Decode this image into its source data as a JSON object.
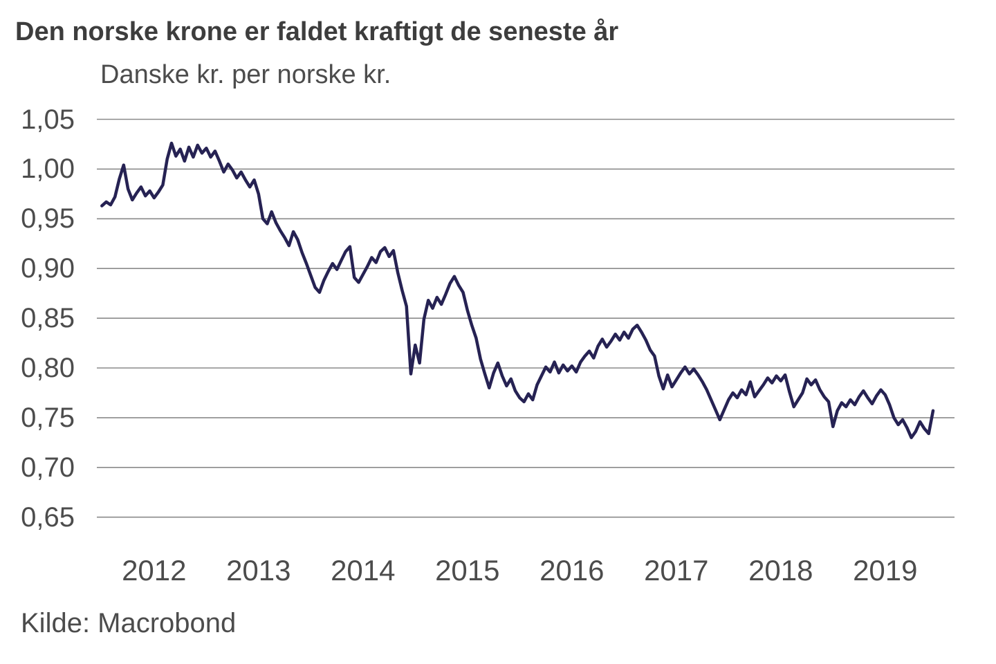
{
  "header": {
    "title": "Den norske krone er faldet kraftigt de seneste år",
    "subtitle": "Danske kr. per norske kr."
  },
  "source_label": "Kilde: Macrobond",
  "colors": {
    "line": "#262253",
    "grid": "#8a8a8a",
    "title_text": "#3d3d3d",
    "body_text": "#4c4c4c",
    "background": "#ffffff"
  },
  "chart_data": {
    "type": "line",
    "title": "Den norske krone er faldet kraftigt de seneste år",
    "ylabel": "Danske kr. per norske kr.",
    "xlabel": "",
    "source": "Kilde: Macrobond",
    "grid": true,
    "legend_position": "none",
    "ylim": [
      0.65,
      1.05
    ],
    "x_range_years": [
      2012.0,
      2019.96
    ],
    "y_ticks": [
      {
        "value": 1.05,
        "label": "1,05"
      },
      {
        "value": 1.0,
        "label": "1,00"
      },
      {
        "value": 0.95,
        "label": "0,95"
      },
      {
        "value": 0.9,
        "label": "0,90"
      },
      {
        "value": 0.85,
        "label": "0,85"
      },
      {
        "value": 0.8,
        "label": "0,80"
      },
      {
        "value": 0.75,
        "label": "0,75"
      },
      {
        "value": 0.7,
        "label": "0,70"
      },
      {
        "value": 0.65,
        "label": "0,65"
      }
    ],
    "x_ticks": [
      {
        "year": 2012,
        "label": "2012"
      },
      {
        "year": 2013,
        "label": "2013"
      },
      {
        "year": 2014,
        "label": "2014"
      },
      {
        "year": 2015,
        "label": "2015"
      },
      {
        "year": 2016,
        "label": "2016"
      },
      {
        "year": 2017,
        "label": "2017"
      },
      {
        "year": 2018,
        "label": "2018"
      },
      {
        "year": 2019,
        "label": "2019"
      }
    ],
    "series": [
      {
        "name": "Danske kr. per norske kr.",
        "x_start": 2012.0,
        "x_step_years": 0.0416667,
        "values": [
          0.963,
          0.967,
          0.964,
          0.972,
          0.99,
          1.004,
          0.98,
          0.969,
          0.976,
          0.982,
          0.973,
          0.978,
          0.971,
          0.977,
          0.984,
          1.01,
          1.026,
          1.013,
          1.02,
          1.008,
          1.022,
          1.012,
          1.024,
          1.016,
          1.021,
          1.012,
          1.018,
          1.008,
          0.997,
          1.005,
          0.999,
          0.991,
          0.997,
          0.989,
          0.982,
          0.989,
          0.975,
          0.95,
          0.945,
          0.957,
          0.946,
          0.938,
          0.931,
          0.923,
          0.937,
          0.929,
          0.916,
          0.905,
          0.893,
          0.881,
          0.876,
          0.888,
          0.897,
          0.905,
          0.899,
          0.908,
          0.917,
          0.922,
          0.891,
          0.886,
          0.894,
          0.902,
          0.911,
          0.906,
          0.917,
          0.921,
          0.912,
          0.918,
          0.896,
          0.878,
          0.862,
          0.794,
          0.823,
          0.805,
          0.849,
          0.868,
          0.86,
          0.871,
          0.864,
          0.874,
          0.885,
          0.892,
          0.883,
          0.876,
          0.858,
          0.843,
          0.83,
          0.809,
          0.794,
          0.78,
          0.795,
          0.805,
          0.792,
          0.782,
          0.789,
          0.777,
          0.77,
          0.766,
          0.774,
          0.768,
          0.783,
          0.792,
          0.801,
          0.796,
          0.806,
          0.795,
          0.803,
          0.797,
          0.802,
          0.796,
          0.806,
          0.812,
          0.817,
          0.81,
          0.822,
          0.829,
          0.821,
          0.827,
          0.834,
          0.828,
          0.836,
          0.83,
          0.839,
          0.843,
          0.836,
          0.828,
          0.818,
          0.812,
          0.792,
          0.779,
          0.793,
          0.781,
          0.788,
          0.795,
          0.801,
          0.794,
          0.799,
          0.793,
          0.786,
          0.778,
          0.768,
          0.758,
          0.748,
          0.758,
          0.768,
          0.775,
          0.77,
          0.778,
          0.773,
          0.786,
          0.771,
          0.777,
          0.783,
          0.79,
          0.785,
          0.792,
          0.787,
          0.793,
          0.776,
          0.761,
          0.768,
          0.775,
          0.789,
          0.783,
          0.788,
          0.778,
          0.771,
          0.766,
          0.741,
          0.757,
          0.765,
          0.761,
          0.768,
          0.763,
          0.771,
          0.777,
          0.77,
          0.764,
          0.772,
          0.778,
          0.773,
          0.763,
          0.75,
          0.743,
          0.748,
          0.74,
          0.73,
          0.736,
          0.746,
          0.739,
          0.734,
          0.757
        ]
      }
    ]
  }
}
